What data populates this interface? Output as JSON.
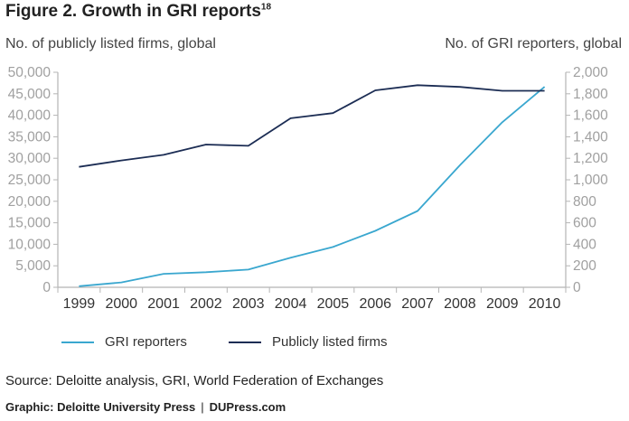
{
  "header": {
    "title": "Figure 2. Growth in GRI reports",
    "title_superscript": "18"
  },
  "chart_data": {
    "type": "line",
    "title": "Figure 2. Growth in GRI reports",
    "ylabel_left": "No. of publicly listed firms, global",
    "ylabel_right": "No. of GRI reporters, global",
    "x": [
      "1999",
      "2000",
      "2001",
      "2002",
      "2003",
      "2004",
      "2005",
      "2006",
      "2007",
      "2008",
      "2009",
      "2010"
    ],
    "y_left_ticks": [
      "0",
      "5,000",
      "10,000",
      "15,000",
      "20,000",
      "25,000",
      "30,000",
      "35,000",
      "40,000",
      "45,000",
      "50,000"
    ],
    "y_right_ticks": [
      "0",
      "200",
      "400",
      "600",
      "800",
      "1,000",
      "1,200",
      "1,400",
      "1,600",
      "1,800",
      "2,000"
    ],
    "ylim_left": [
      0,
      50000
    ],
    "ylim_right": [
      0,
      2000
    ],
    "grid": false,
    "legend_position": "bottom",
    "series": [
      {
        "name": "GRI reporters",
        "axis": "right",
        "color": "#3aa7cf",
        "values": [
          10,
          45,
          125,
          140,
          165,
          275,
          375,
          525,
          710,
          1135,
          1535,
          1865
        ]
      },
      {
        "name": "Publicly listed firms",
        "axis": "left",
        "color": "#1c2d54",
        "values": [
          28000,
          29500,
          30800,
          33200,
          32900,
          39300,
          40500,
          45800,
          47000,
          46600,
          45700,
          45700
        ]
      }
    ]
  },
  "footer": {
    "source": "Source: Deloitte analysis, GRI, World Federation of Exchanges",
    "graphic_left": "Graphic: Deloitte University Press",
    "graphic_sep": "|",
    "graphic_right": "DUPress.com"
  }
}
